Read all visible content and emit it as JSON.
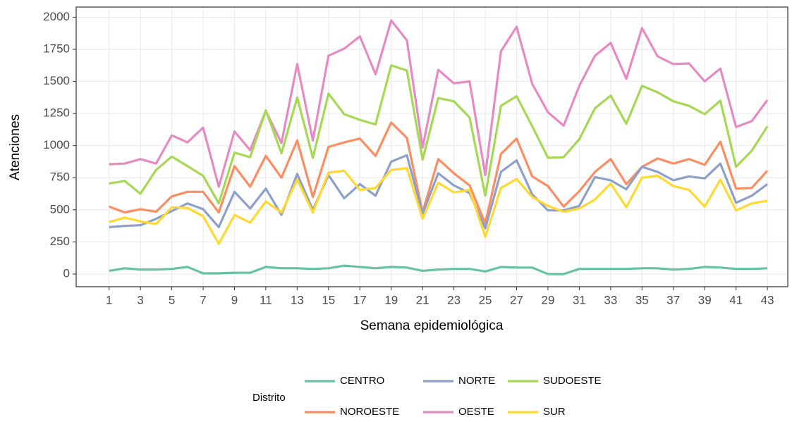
{
  "chart_data": {
    "type": "line",
    "x_label": "Semana epidemiológica",
    "y_label": "Atenciones",
    "legend_title": "Distrito",
    "legend_position": "bottom",
    "grid": true,
    "x": [
      1,
      2,
      3,
      4,
      5,
      6,
      7,
      8,
      9,
      10,
      11,
      12,
      13,
      14,
      15,
      16,
      17,
      18,
      19,
      20,
      21,
      22,
      23,
      24,
      25,
      26,
      27,
      28,
      29,
      30,
      31,
      32,
      33,
      34,
      35,
      36,
      37,
      38,
      39,
      40,
      41,
      42,
      43
    ],
    "xlim": [
      -1.1,
      44.3
    ],
    "xticks": [
      1,
      3,
      5,
      7,
      9,
      11,
      13,
      15,
      17,
      19,
      21,
      23,
      25,
      27,
      29,
      31,
      33,
      35,
      37,
      39,
      41,
      43
    ],
    "ylim": [
      -99,
      2079
    ],
    "yticks": [
      0,
      250,
      500,
      750,
      1000,
      1250,
      1500,
      1750,
      2000
    ],
    "series": [
      {
        "name": "CENTRO",
        "color": "#66c2a5",
        "values": [
          25,
          45,
          35,
          35,
          40,
          55,
          5,
          5,
          10,
          10,
          55,
          45,
          45,
          40,
          45,
          65,
          55,
          45,
          55,
          50,
          25,
          35,
          40,
          40,
          20,
          55,
          50,
          50,
          0,
          0,
          40,
          40,
          40,
          40,
          45,
          45,
          35,
          40,
          55,
          50,
          40,
          40,
          45
        ]
      },
      {
        "name": "NOROESTE",
        "color": "#fc8d62",
        "values": [
          525,
          480,
          505,
          485,
          605,
          640,
          640,
          480,
          840,
          680,
          920,
          750,
          1040,
          600,
          990,
          1025,
          1055,
          920,
          1180,
          1060,
          480,
          895,
          785,
          690,
          395,
          935,
          1055,
          760,
          685,
          525,
          645,
          795,
          895,
          700,
          835,
          900,
          860,
          895,
          850,
          1030,
          665,
          670,
          805
        ]
      },
      {
        "name": "NORTE",
        "color": "#8da0cb",
        "values": [
          365,
          375,
          380,
          430,
          490,
          550,
          505,
          365,
          640,
          510,
          665,
          460,
          780,
          500,
          770,
          590,
          700,
          610,
          875,
          925,
          470,
          785,
          690,
          630,
          355,
          795,
          885,
          620,
          495,
          495,
          530,
          755,
          730,
          660,
          835,
          795,
          730,
          760,
          745,
          860,
          555,
          610,
          700
        ]
      },
      {
        "name": "OESTE",
        "color": "#e78ac3",
        "values": [
          855,
          860,
          895,
          860,
          1080,
          1025,
          1140,
          680,
          1110,
          965,
          1270,
          1020,
          1635,
          1040,
          1700,
          1755,
          1850,
          1555,
          1975,
          1820,
          985,
          1590,
          1485,
          1500,
          770,
          1735,
          1925,
          1480,
          1260,
          1155,
          1465,
          1700,
          1800,
          1520,
          1915,
          1695,
          1635,
          1640,
          1500,
          1600,
          1145,
          1190,
          1355
        ]
      },
      {
        "name": "SUDOESTE",
        "color": "#a6d854",
        "values": [
          705,
          725,
          625,
          810,
          915,
          840,
          765,
          550,
          945,
          910,
          1275,
          940,
          1375,
          905,
          1405,
          1245,
          1200,
          1165,
          1625,
          1585,
          890,
          1370,
          1345,
          1220,
          610,
          1310,
          1385,
          1150,
          905,
          910,
          1050,
          1290,
          1390,
          1170,
          1465,
          1415,
          1345,
          1310,
          1245,
          1350,
          835,
          960,
          1150
        ]
      },
      {
        "name": "SUR",
        "color": "#ffd92f",
        "values": [
          405,
          440,
          410,
          390,
          520,
          515,
          450,
          235,
          460,
          400,
          565,
          480,
          735,
          480,
          790,
          805,
          655,
          670,
          810,
          825,
          430,
          710,
          635,
          655,
          290,
          670,
          740,
          600,
          530,
          485,
          510,
          580,
          705,
          520,
          750,
          765,
          685,
          655,
          525,
          735,
          495,
          550,
          570
        ]
      }
    ]
  }
}
